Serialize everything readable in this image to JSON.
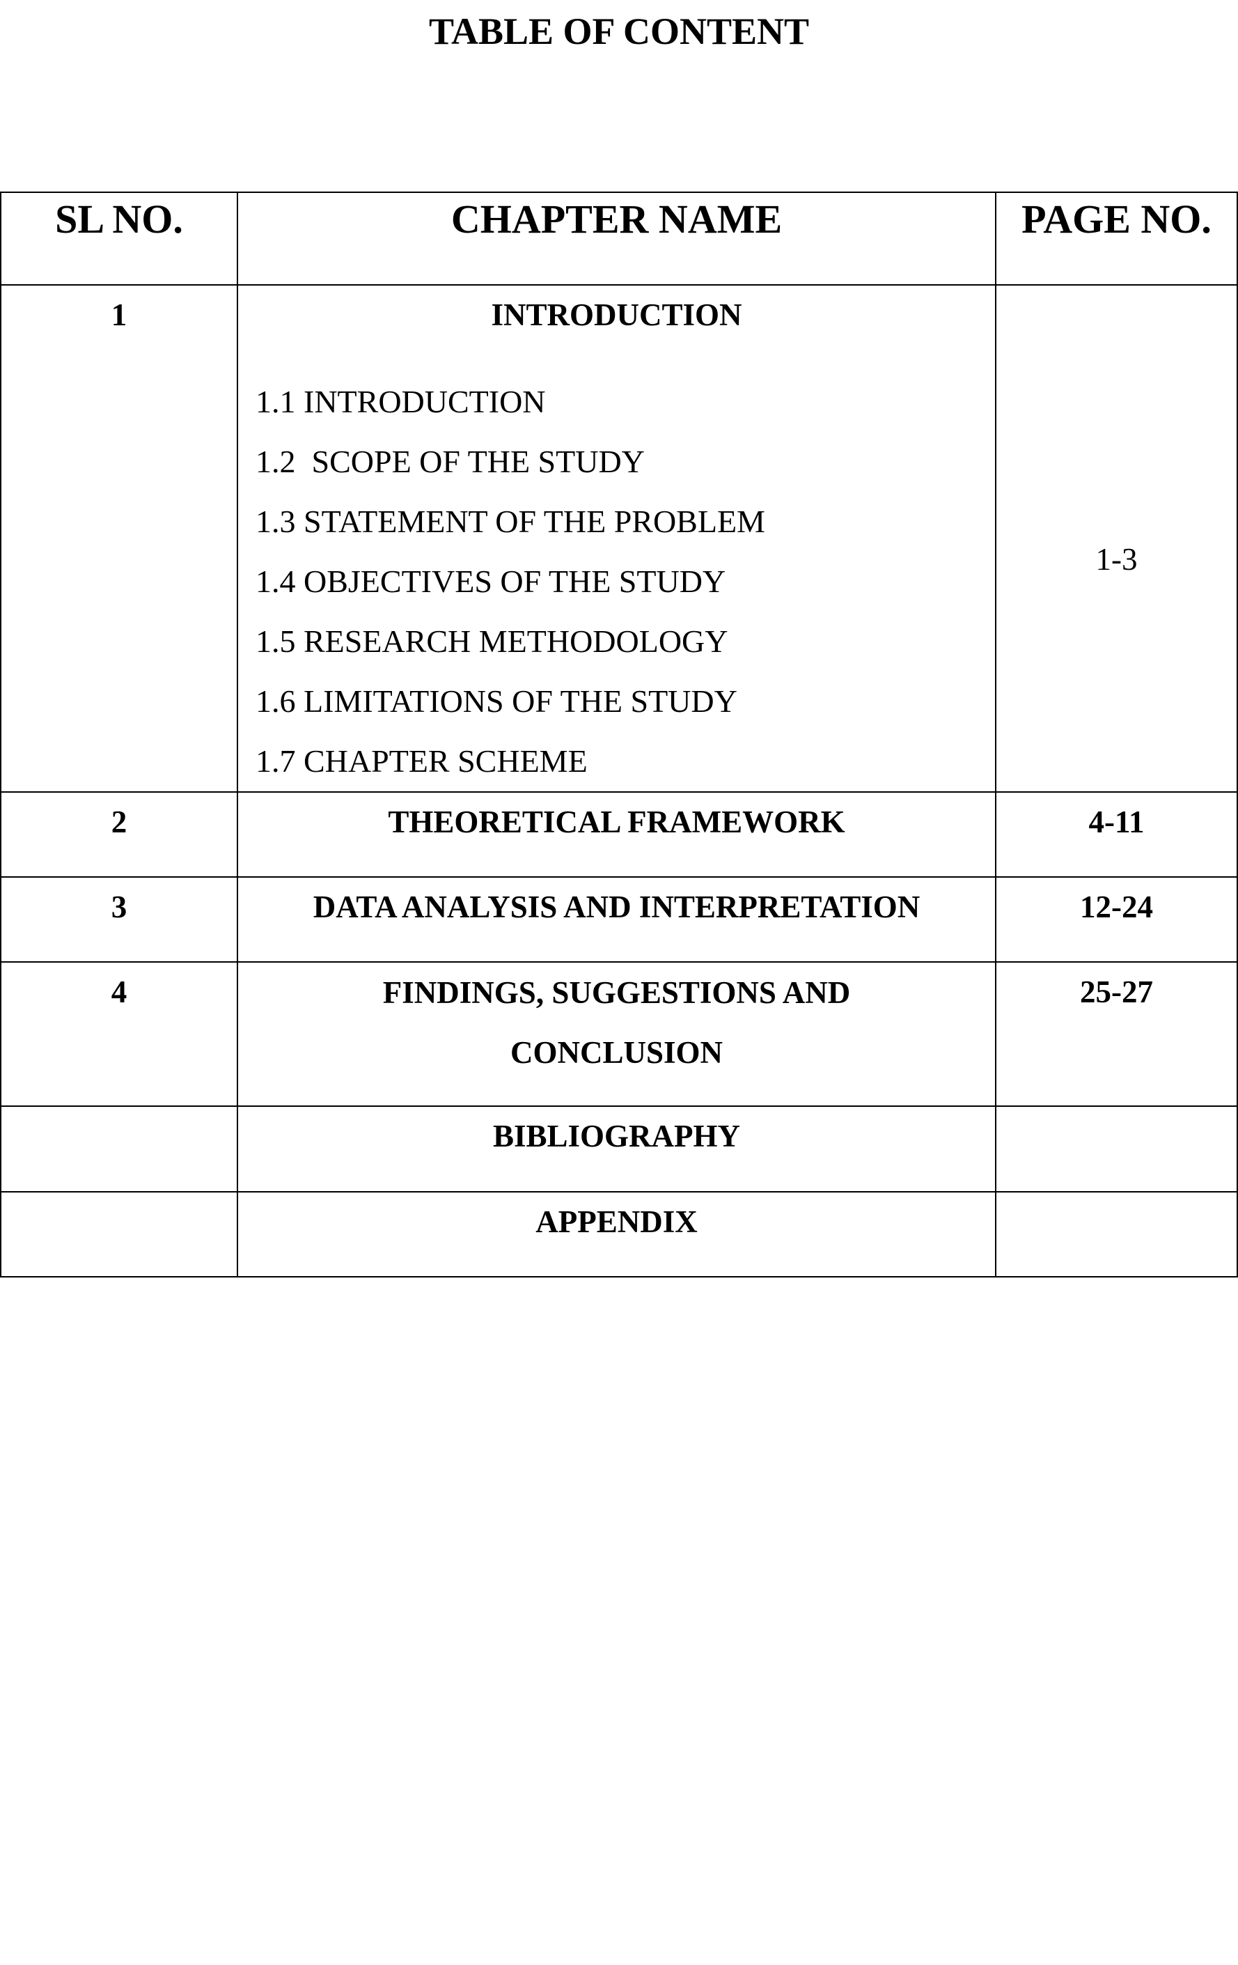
{
  "title": "TABLE OF CONTENT",
  "headers": {
    "sl": "SL NO.",
    "chapter": "CHAPTER NAME",
    "page": "PAGE NO."
  },
  "rows": [
    {
      "sl": "1",
      "chapter": "INTRODUCTION",
      "page": "1-3",
      "subitems": [
        "1.1 INTRODUCTION",
        "1.2  SCOPE OF THE STUDY",
        "1.3 STATEMENT OF THE PROBLEM",
        "1.4 OBJECTIVES OF THE STUDY",
        "1.5 RESEARCH METHODOLOGY",
        "1.6 LIMITATIONS OF THE STUDY",
        "1.7 CHAPTER SCHEME"
      ]
    },
    {
      "sl": "2",
      "chapter": "THEORETICAL FRAMEWORK",
      "page": "4-11"
    },
    {
      "sl": "3",
      "chapter": "DATA ANALYSIS AND INTERPRETATION",
      "page": "12-24"
    },
    {
      "sl": "4",
      "chapter_line1": "FINDINGS, SUGGESTIONS AND",
      "chapter_line2": "CONCLUSION",
      "page": "25-27"
    },
    {
      "sl": "",
      "chapter": "BIBLIOGRAPHY",
      "page": ""
    },
    {
      "sl": "",
      "chapter": "APPENDIX",
      "page": ""
    }
  ]
}
